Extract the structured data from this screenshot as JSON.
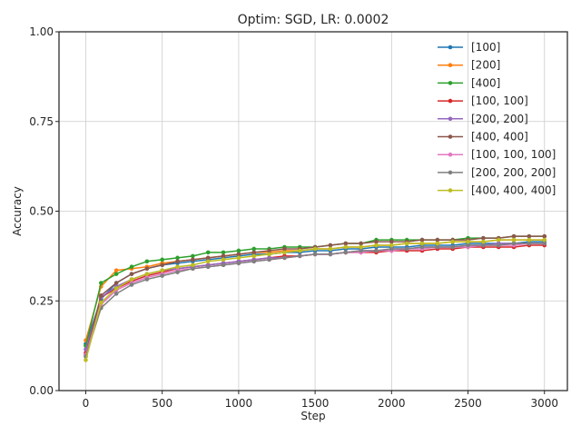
{
  "chart_data": {
    "type": "line",
    "title": "Optim: SGD, LR: 0.0002",
    "xlabel": "Step",
    "ylabel": "Accuracy",
    "xlim": [
      -175,
      3150
    ],
    "ylim": [
      0.0,
      1.0
    ],
    "xticks": [
      0,
      500,
      1000,
      1500,
      2000,
      2500,
      3000
    ],
    "xtick_labels": [
      "0",
      "500",
      "1000",
      "1500",
      "2000",
      "2500",
      "3000"
    ],
    "yticks": [
      0.0,
      0.25,
      0.5,
      0.75,
      1.0
    ],
    "ytick_labels": [
      "0.00",
      "0.25",
      "0.50",
      "0.75",
      "1.00"
    ],
    "grid": true,
    "legend_position": "top-right",
    "x": [
      0,
      100,
      200,
      300,
      400,
      500,
      600,
      700,
      800,
      900,
      1000,
      1100,
      1200,
      1300,
      1400,
      1500,
      1600,
      1700,
      1800,
      1900,
      2000,
      2100,
      2200,
      2300,
      2400,
      2500,
      2600,
      2700,
      2800,
      2900,
      3000
    ],
    "series": [
      {
        "name": "[100]",
        "color": "#1f77b4",
        "values": [
          0.13,
          0.255,
          0.3,
          0.325,
          0.34,
          0.35,
          0.355,
          0.36,
          0.365,
          0.37,
          0.375,
          0.38,
          0.38,
          0.385,
          0.385,
          0.39,
          0.39,
          0.395,
          0.395,
          0.4,
          0.4,
          0.4,
          0.405,
          0.405,
          0.405,
          0.41,
          0.41,
          0.41,
          0.41,
          0.415,
          0.415
        ]
      },
      {
        "name": "[200]",
        "color": "#ff7f0e",
        "values": [
          0.14,
          0.29,
          0.335,
          0.34,
          0.345,
          0.355,
          0.36,
          0.365,
          0.37,
          0.375,
          0.38,
          0.385,
          0.385,
          0.39,
          0.39,
          0.395,
          0.395,
          0.4,
          0.4,
          0.405,
          0.405,
          0.41,
          0.41,
          0.41,
          0.415,
          0.415,
          0.415,
          0.42,
          0.42,
          0.42,
          0.42
        ]
      },
      {
        "name": "[400]",
        "color": "#2ca02c",
        "values": [
          0.125,
          0.3,
          0.325,
          0.345,
          0.36,
          0.365,
          0.37,
          0.375,
          0.385,
          0.385,
          0.39,
          0.395,
          0.395,
          0.4,
          0.4,
          0.4,
          0.405,
          0.41,
          0.41,
          0.42,
          0.42,
          0.42,
          0.42,
          0.42,
          0.42,
          0.425,
          0.425,
          0.425,
          0.43,
          0.43,
          0.43
        ]
      },
      {
        "name": "[100, 100]",
        "color": "#d62728",
        "values": [
          0.105,
          0.26,
          0.285,
          0.305,
          0.32,
          0.33,
          0.34,
          0.345,
          0.35,
          0.355,
          0.36,
          0.365,
          0.37,
          0.375,
          0.375,
          0.38,
          0.38,
          0.385,
          0.385,
          0.385,
          0.39,
          0.39,
          0.39,
          0.395,
          0.395,
          0.4,
          0.4,
          0.4,
          0.4,
          0.405,
          0.405
        ]
      },
      {
        "name": "[200, 200]",
        "color": "#9467bd",
        "values": [
          0.115,
          0.26,
          0.29,
          0.31,
          0.325,
          0.335,
          0.34,
          0.345,
          0.35,
          0.355,
          0.36,
          0.365,
          0.37,
          0.37,
          0.375,
          0.38,
          0.38,
          0.385,
          0.39,
          0.39,
          0.395,
          0.395,
          0.4,
          0.4,
          0.4,
          0.405,
          0.405,
          0.41,
          0.41,
          0.41,
          0.41
        ]
      },
      {
        "name": "[400, 400]",
        "color": "#8c564b",
        "values": [
          0.1,
          0.265,
          0.3,
          0.325,
          0.34,
          0.35,
          0.36,
          0.365,
          0.37,
          0.375,
          0.38,
          0.385,
          0.39,
          0.395,
          0.395,
          0.4,
          0.405,
          0.41,
          0.41,
          0.415,
          0.415,
          0.415,
          0.42,
          0.42,
          0.42,
          0.42,
          0.425,
          0.425,
          0.43,
          0.43,
          0.43
        ]
      },
      {
        "name": "[100, 100, 100]",
        "color": "#e377c2",
        "values": [
          0.1,
          0.24,
          0.28,
          0.3,
          0.315,
          0.325,
          0.335,
          0.34,
          0.345,
          0.35,
          0.355,
          0.36,
          0.365,
          0.37,
          0.375,
          0.38,
          0.38,
          0.385,
          0.385,
          0.39,
          0.39,
          0.395,
          0.395,
          0.4,
          0.4,
          0.4,
          0.405,
          0.405,
          0.405,
          0.41,
          0.41
        ]
      },
      {
        "name": "[200, 200, 200]",
        "color": "#7f7f7f",
        "values": [
          0.095,
          0.23,
          0.27,
          0.295,
          0.31,
          0.32,
          0.33,
          0.34,
          0.345,
          0.35,
          0.355,
          0.36,
          0.365,
          0.37,
          0.375,
          0.38,
          0.38,
          0.385,
          0.39,
          0.39,
          0.395,
          0.395,
          0.4,
          0.4,
          0.4,
          0.405,
          0.405,
          0.405,
          0.41,
          0.41,
          0.41
        ]
      },
      {
        "name": "[400, 400, 400]",
        "color": "#bcbd22",
        "values": [
          0.085,
          0.245,
          0.285,
          0.31,
          0.325,
          0.335,
          0.345,
          0.35,
          0.36,
          0.365,
          0.37,
          0.375,
          0.38,
          0.385,
          0.39,
          0.395,
          0.395,
          0.4,
          0.4,
          0.405,
          0.405,
          0.41,
          0.41,
          0.41,
          0.415,
          0.415,
          0.415,
          0.42,
          0.42,
          0.42,
          0.42
        ]
      }
    ]
  }
}
